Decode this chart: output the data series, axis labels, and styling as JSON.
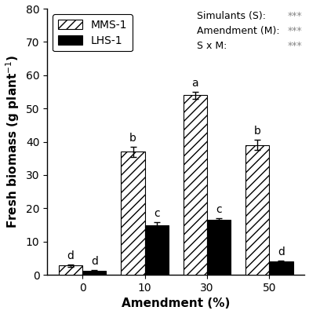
{
  "categories": [
    0,
    10,
    30,
    50
  ],
  "mms1_values": [
    2.8,
    37.0,
    54.0,
    39.0
  ],
  "lhs1_values": [
    1.2,
    15.0,
    16.5,
    4.0
  ],
  "mms1_errors": [
    0.3,
    1.5,
    1.0,
    1.5
  ],
  "lhs1_errors": [
    0.2,
    0.8,
    0.5,
    0.3
  ],
  "mms1_labels": [
    "d",
    "b",
    "a",
    "b"
  ],
  "lhs1_labels": [
    "d",
    "c",
    "c",
    "d"
  ],
  "ylabel": "Fresh biomass (g plant$^{-1}$)",
  "xlabel": "Amendment (%)",
  "ylim": [
    0,
    80
  ],
  "yticks": [
    0,
    10,
    20,
    30,
    40,
    50,
    60,
    70,
    80
  ],
  "xtick_labels": [
    "0",
    "10",
    "30",
    "50"
  ],
  "legend_mms1": "MMS-1",
  "legend_lhs1": "LHS-1",
  "stats_label": "Simulants (S):\nAmendment (M):\nS x M:",
  "stats_sig": "***\n***\n***",
  "bar_width": 0.38,
  "hatch_pattern": "///",
  "mms1_color": "white",
  "lhs1_color": "black",
  "edge_color": "black",
  "background_color": "white",
  "label_fontsize": 11,
  "tick_fontsize": 10,
  "annot_fontsize": 10,
  "legend_fontsize": 10,
  "stats_fontsize": 9,
  "stats_color": "#555555",
  "stats_sig_color": "#888888"
}
